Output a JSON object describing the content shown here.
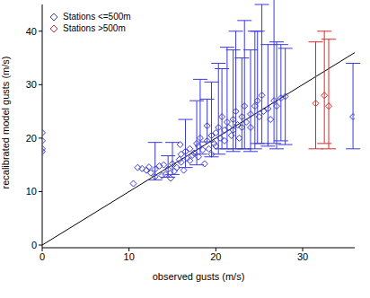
{
  "chart_data": {
    "type": "scatter",
    "xlabel": "observed gusts (m/s)",
    "ylabel": "recalibrated model gusts (m/s)",
    "xlim": [
      0,
      36
    ],
    "ylim": [
      -0.5,
      45
    ],
    "xticks": [
      0,
      10,
      20,
      30
    ],
    "yticks": [
      0,
      10,
      20,
      30,
      40
    ],
    "grid": false,
    "legend": "upper left",
    "reference_line": {
      "x": [
        0,
        36
      ],
      "y": [
        0,
        36
      ],
      "color": "#000000"
    },
    "series": [
      {
        "name": "Stations <=500m",
        "color": "#3a3adf",
        "marker": "diamond",
        "x": [
          0,
          0,
          0,
          0,
          10.5,
          11,
          11.5,
          12,
          12.3,
          12.5,
          13,
          13,
          13.5,
          13.8,
          14,
          14.2,
          14.5,
          14.8,
          15,
          15.2,
          15.5,
          15.8,
          16,
          16,
          16.3,
          16.5,
          16.7,
          17,
          17,
          17.3,
          17.5,
          17.8,
          18,
          18,
          18.2,
          18.5,
          18.7,
          19,
          19,
          19.2,
          19.5,
          19.5,
          19.8,
          20,
          20,
          20.3,
          20.5,
          20.7,
          21,
          21,
          21.3,
          21.5,
          21.8,
          22,
          22,
          22.3,
          22.5,
          22.7,
          23,
          23,
          23.3,
          23.5,
          24,
          24,
          24.5,
          24.8,
          25,
          25.3,
          25.5,
          26,
          26.3,
          26.7,
          27,
          27.5,
          28,
          15.9,
          35.8
        ],
        "values": [
          17.5,
          18,
          19.5,
          21,
          11.5,
          14.5,
          14.3,
          14,
          14.6,
          13.5,
          14.2,
          12.8,
          14.8,
          13,
          15,
          13.2,
          14.2,
          12.5,
          15.2,
          13.8,
          14.5,
          16,
          15.5,
          17,
          14,
          17.5,
          16.2,
          18,
          15.8,
          16.8,
          17.2,
          19,
          16.5,
          18.5,
          20,
          17.8,
          15.2,
          19.5,
          22.3,
          18,
          20.5,
          17,
          19,
          21,
          18.5,
          22,
          20,
          24,
          21.5,
          19.5,
          23,
          22,
          20.5,
          23.5,
          21.5,
          25,
          22.5,
          20,
          24,
          22,
          26,
          23,
          24.5,
          22,
          26,
          27,
          24,
          28,
          25,
          25.5,
          23.5,
          27,
          26,
          27.5,
          27.8,
          18.8,
          24
        ],
        "error": [
          null,
          null,
          null,
          null,
          null,
          null,
          null,
          null,
          null,
          null,
          [
            2,
            5
          ],
          null,
          null,
          null,
          null,
          null,
          [
            1.5,
            2.5
          ],
          null,
          [
            2,
            4
          ],
          null,
          null,
          null,
          null,
          null,
          null,
          [
            3,
            6
          ],
          null,
          null,
          null,
          null,
          null,
          [
            4,
            8
          ],
          null,
          null,
          [
            3,
            11
          ],
          null,
          null,
          null,
          [
            3,
            5
          ],
          null,
          [
            4,
            10
          ],
          null,
          null,
          null,
          null,
          [
            5,
            12
          ],
          null,
          [
            6,
            9
          ],
          null,
          null,
          [
            5,
            14
          ],
          null,
          null,
          [
            6,
            13
          ],
          null,
          [
            7,
            15
          ],
          null,
          null,
          [
            6,
            11
          ],
          null,
          [
            8,
            16
          ],
          null,
          [
            7,
            12
          ],
          null,
          [
            8,
            14
          ],
          [
            8,
            13
          ],
          null,
          [
            9,
            17
          ],
          null,
          [
            7,
            12
          ],
          null,
          [
            8,
            19
          ],
          [
            8,
            12
          ],
          [
            8,
            10
          ],
          [
            9,
            9
          ],
          null,
          [
            6,
            10
          ]
        ]
      },
      {
        "name": "Stations >500m",
        "color": "#e02828",
        "marker": "diamond",
        "x": [
          31.5,
          32.5,
          33
        ],
        "values": [
          26.5,
          28,
          26
        ],
        "error": [
          [
            8.5,
            11.5
          ],
          [
            9,
            12
          ],
          [
            8,
            12.5
          ]
        ]
      }
    ]
  }
}
